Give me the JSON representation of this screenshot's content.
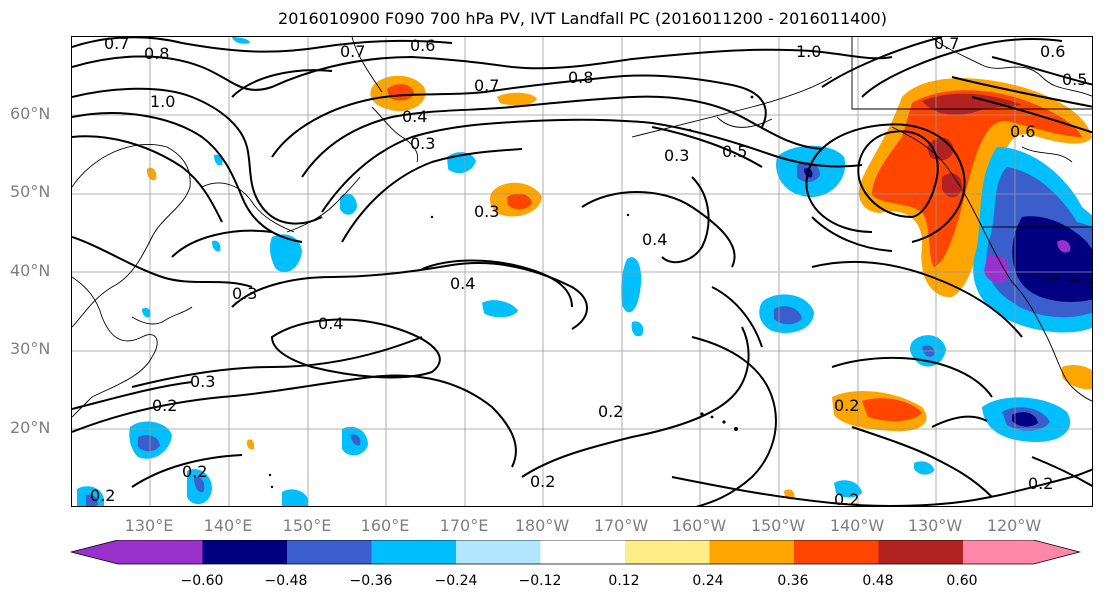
{
  "title": "2016010900 F090 700 hPa PV, IVT Landfall PC (2016011200 - 2016011400)",
  "lat_labels": [
    "60°N",
    "50°N",
    "40°N",
    "30°N",
    "20°N"
  ],
  "lon_labels": [
    "130°E",
    "140°E",
    "150°E",
    "160°E",
    "170°E",
    "180°W",
    "170°W",
    "160°W",
    "150°W",
    "140°W",
    "130°W",
    "120°W"
  ],
  "colorbar": {
    "ticks": [
      "−0.60",
      "−0.48",
      "−0.36",
      "−0.24",
      "−0.12",
      "0.12",
      "0.24",
      "0.36",
      "0.48",
      "0.60"
    ],
    "colors": [
      "#9932cc",
      "#000080",
      "#3a5fcd",
      "#00bfff",
      "#b2e6ff",
      "#ffffff",
      "#ffee88",
      "#ffa500",
      "#ff4500",
      "#b22222",
      "#ff88aa"
    ]
  },
  "contour_labels": [
    "0.7",
    "0.8",
    "0.7",
    "0.6",
    "1.0",
    "0.7",
    "0.8",
    "0.7",
    "0.6",
    "0.5",
    "1.0",
    "0.4",
    "0.3",
    "0.3",
    "0.5",
    "0.3",
    "0.4",
    "0.4",
    "0.3",
    "0.4",
    "0.3",
    "0.2",
    "0.2",
    "0.2",
    "0.2",
    "0.2",
    "0.2",
    "0.2",
    "0.2",
    "0.6"
  ]
}
